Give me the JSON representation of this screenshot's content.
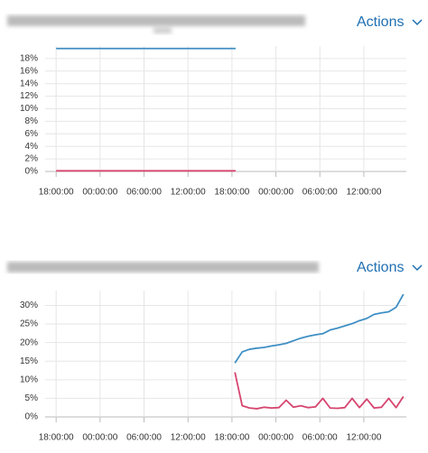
{
  "panels": [
    {
      "action": "Actions"
    },
    {
      "action": "Actions"
    }
  ],
  "chart_data": [
    {
      "type": "line",
      "x": [
        0,
        24.5
      ],
      "xlim": [
        -1.5,
        47.8
      ],
      "xticks": [
        {
          "value": 0,
          "label": "18:00:00"
        },
        {
          "value": 6,
          "label": "00:00:00"
        },
        {
          "value": 12,
          "label": "06:00:00"
        },
        {
          "value": 18,
          "label": "12:00:00"
        },
        {
          "value": 24,
          "label": "18:00:00"
        },
        {
          "value": 30,
          "label": "00:00:00"
        },
        {
          "value": 36,
          "label": "06:00:00"
        },
        {
          "value": 42,
          "label": "12:00:00"
        }
      ],
      "ylim": [
        0,
        20
      ],
      "yticks": [
        {
          "value": 0,
          "label": "0%"
        },
        {
          "value": 2,
          "label": "2%"
        },
        {
          "value": 4,
          "label": "4%"
        },
        {
          "value": 6,
          "label": "6%"
        },
        {
          "value": 8,
          "label": "8%"
        },
        {
          "value": 10,
          "label": "10%"
        },
        {
          "value": 12,
          "label": "12%"
        },
        {
          "value": 14,
          "label": "14%"
        },
        {
          "value": 16,
          "label": "16%"
        },
        {
          "value": 18,
          "label": "18%"
        }
      ],
      "grid": true,
      "series": [
        {
          "color": "#3f8fc4",
          "values": [
            19.6,
            19.6
          ]
        },
        {
          "color": "#d6456f",
          "values": [
            0.1,
            0.1
          ]
        }
      ]
    },
    {
      "type": "line",
      "x": [
        24.4,
        25.4,
        26.4,
        27.4,
        28.4,
        29.4,
        30.4,
        31.4,
        32.4,
        33.4,
        34.4,
        35.4,
        36.4,
        37.4,
        38.4,
        39.4,
        40.4,
        41.4,
        42.4,
        43.4,
        44.4,
        45.4,
        46.4,
        47.4
      ],
      "xlim": [
        -1.5,
        47.8
      ],
      "xticks": [
        {
          "value": 0,
          "label": "18:00:00"
        },
        {
          "value": 6,
          "label": "00:00:00"
        },
        {
          "value": 12,
          "label": "06:00:00"
        },
        {
          "value": 18,
          "label": "12:00:00"
        },
        {
          "value": 24,
          "label": "18:00:00"
        },
        {
          "value": 30,
          "label": "00:00:00"
        },
        {
          "value": 36,
          "label": "06:00:00"
        },
        {
          "value": 42,
          "label": "12:00:00"
        }
      ],
      "ylim": [
        0,
        34
      ],
      "yticks": [
        {
          "value": 0,
          "label": "0%"
        },
        {
          "value": 5,
          "label": "5%"
        },
        {
          "value": 10,
          "label": "10%"
        },
        {
          "value": 15,
          "label": "15%"
        },
        {
          "value": 20,
          "label": "20%"
        },
        {
          "value": 25,
          "label": "25%"
        },
        {
          "value": 30,
          "label": "30%"
        }
      ],
      "grid": true,
      "series": [
        {
          "color": "#3f8fc4",
          "values": [
            14.5,
            17.5,
            18.2,
            18.5,
            18.7,
            19.1,
            19.4,
            19.8,
            20.5,
            21.2,
            21.7,
            22.1,
            22.4,
            23.4,
            23.9,
            24.5,
            25.1,
            25.9,
            26.5,
            27.6,
            28.0,
            28.3,
            29.5,
            33.0
          ]
        },
        {
          "color": "#d6456f",
          "values": [
            12,
            3,
            2.4,
            2.2,
            2.6,
            2.4,
            2.5,
            4.5,
            2.6,
            3,
            2.5,
            2.7,
            5,
            2.4,
            2.3,
            2.5,
            5,
            2.5,
            4.8,
            2.4,
            2.6,
            5,
            2.5,
            5.5
          ]
        }
      ]
    }
  ]
}
